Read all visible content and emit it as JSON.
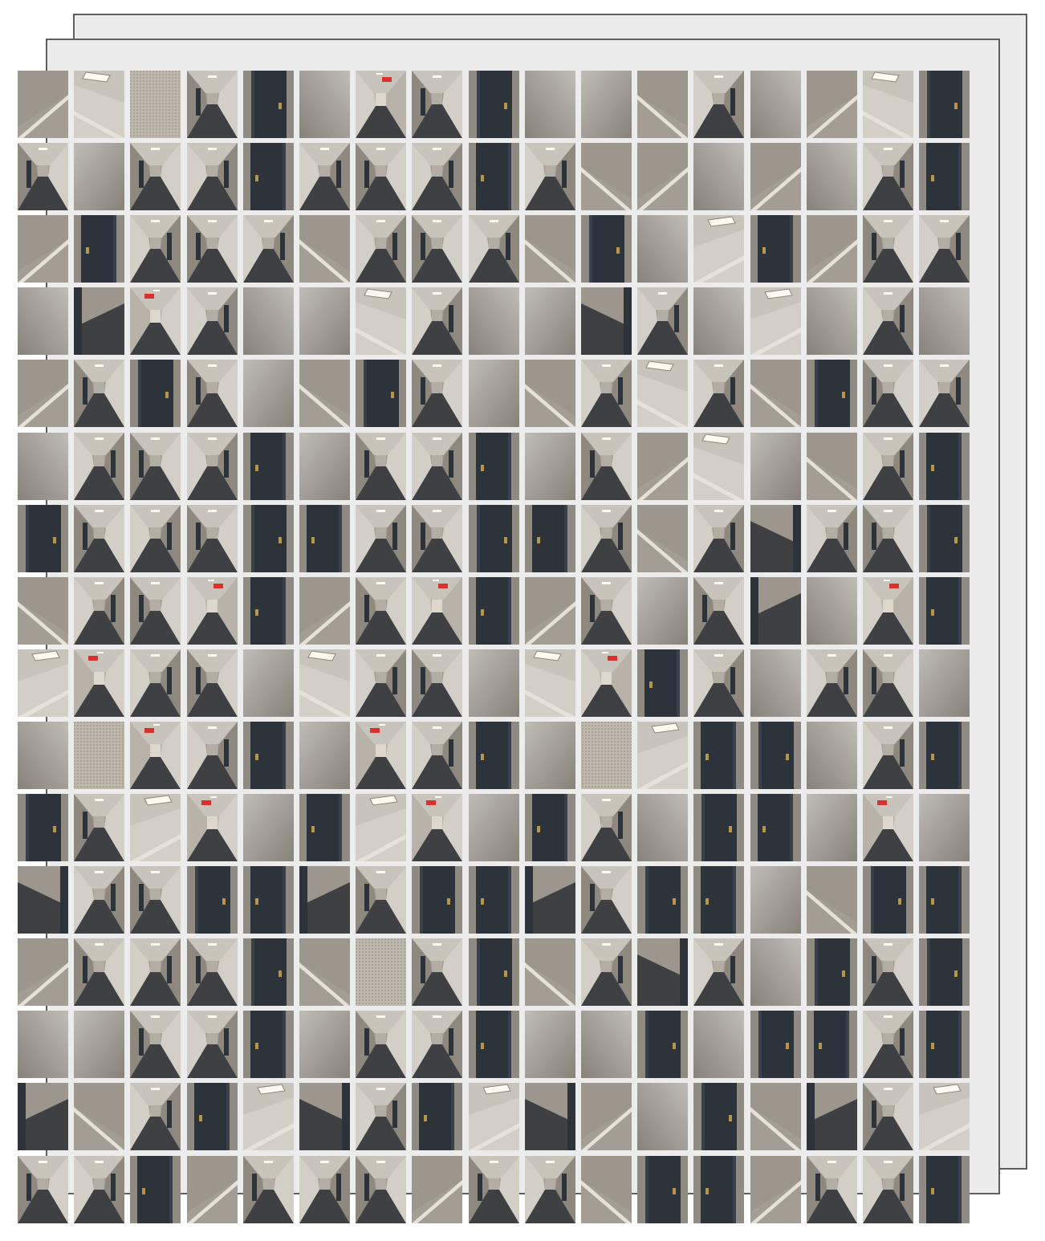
{
  "collage": {
    "stack_layers": 3,
    "rows": 16,
    "cols": 17,
    "frame_color": "#5e5e5e",
    "sheet_color": "#ececec",
    "palette": {
      "wall": "#a39d94",
      "wall_light": "#d4cfc6",
      "carpet": "#3f4044",
      "door": "#2d333b",
      "ceiling": "#c9c4bb",
      "light": "#fffaf0",
      "exit_sign": "#d9322c",
      "moulding": "#e6e2da",
      "texture": "#bdb7ac"
    },
    "tile_kinds": [
      "hallway-view",
      "door-closeup",
      "wall-corner",
      "plain-wall",
      "ceiling-light",
      "textured-wall",
      "exit-hallway",
      "carpet-floor"
    ],
    "grid": [
      [
        2,
        4,
        5,
        0,
        1,
        3,
        6,
        0,
        1,
        3,
        3,
        2,
        0,
        3,
        2,
        4,
        1
      ],
      [
        0,
        3,
        0,
        0,
        1,
        0,
        0,
        0,
        1,
        0,
        2,
        2,
        3,
        2,
        3,
        0,
        1
      ],
      [
        2,
        1,
        0,
        0,
        0,
        2,
        0,
        0,
        0,
        2,
        1,
        3,
        4,
        1,
        2,
        0,
        0
      ],
      [
        3,
        7,
        6,
        0,
        3,
        3,
        4,
        0,
        3,
        3,
        7,
        0,
        3,
        4,
        3,
        0,
        3
      ],
      [
        2,
        0,
        1,
        0,
        3,
        2,
        1,
        0,
        3,
        2,
        0,
        4,
        0,
        2,
        1,
        0,
        0
      ],
      [
        3,
        0,
        0,
        0,
        1,
        3,
        0,
        0,
        1,
        3,
        0,
        2,
        4,
        3,
        2,
        0,
        1
      ],
      [
        1,
        0,
        0,
        0,
        1,
        1,
        0,
        0,
        1,
        1,
        0,
        2,
        0,
        7,
        0,
        0,
        1
      ],
      [
        2,
        0,
        0,
        6,
        1,
        2,
        0,
        6,
        1,
        2,
        0,
        3,
        0,
        7,
        3,
        6,
        1
      ],
      [
        4,
        6,
        0,
        0,
        3,
        4,
        0,
        0,
        3,
        4,
        6,
        1,
        0,
        3,
        0,
        0,
        3
      ],
      [
        3,
        5,
        6,
        0,
        1,
        3,
        6,
        0,
        1,
        3,
        5,
        4,
        1,
        1,
        3,
        0,
        1
      ],
      [
        1,
        0,
        4,
        6,
        3,
        1,
        4,
        6,
        3,
        1,
        0,
        3,
        1,
        1,
        3,
        6,
        3
      ],
      [
        7,
        0,
        0,
        1,
        1,
        7,
        0,
        1,
        1,
        7,
        0,
        1,
        1,
        3,
        2,
        1,
        1
      ],
      [
        2,
        0,
        0,
        0,
        1,
        2,
        5,
        0,
        1,
        2,
        0,
        7,
        0,
        3,
        1,
        0,
        1
      ],
      [
        3,
        3,
        0,
        0,
        1,
        3,
        0,
        0,
        1,
        3,
        3,
        1,
        3,
        1,
        1,
        0,
        1
      ],
      [
        7,
        2,
        0,
        1,
        4,
        7,
        0,
        1,
        4,
        7,
        2,
        3,
        1,
        2,
        7,
        0,
        4
      ],
      [
        0,
        0,
        1,
        2,
        0,
        0,
        0,
        2,
        0,
        0,
        2,
        1,
        1,
        2,
        0,
        0,
        1
      ]
    ]
  }
}
